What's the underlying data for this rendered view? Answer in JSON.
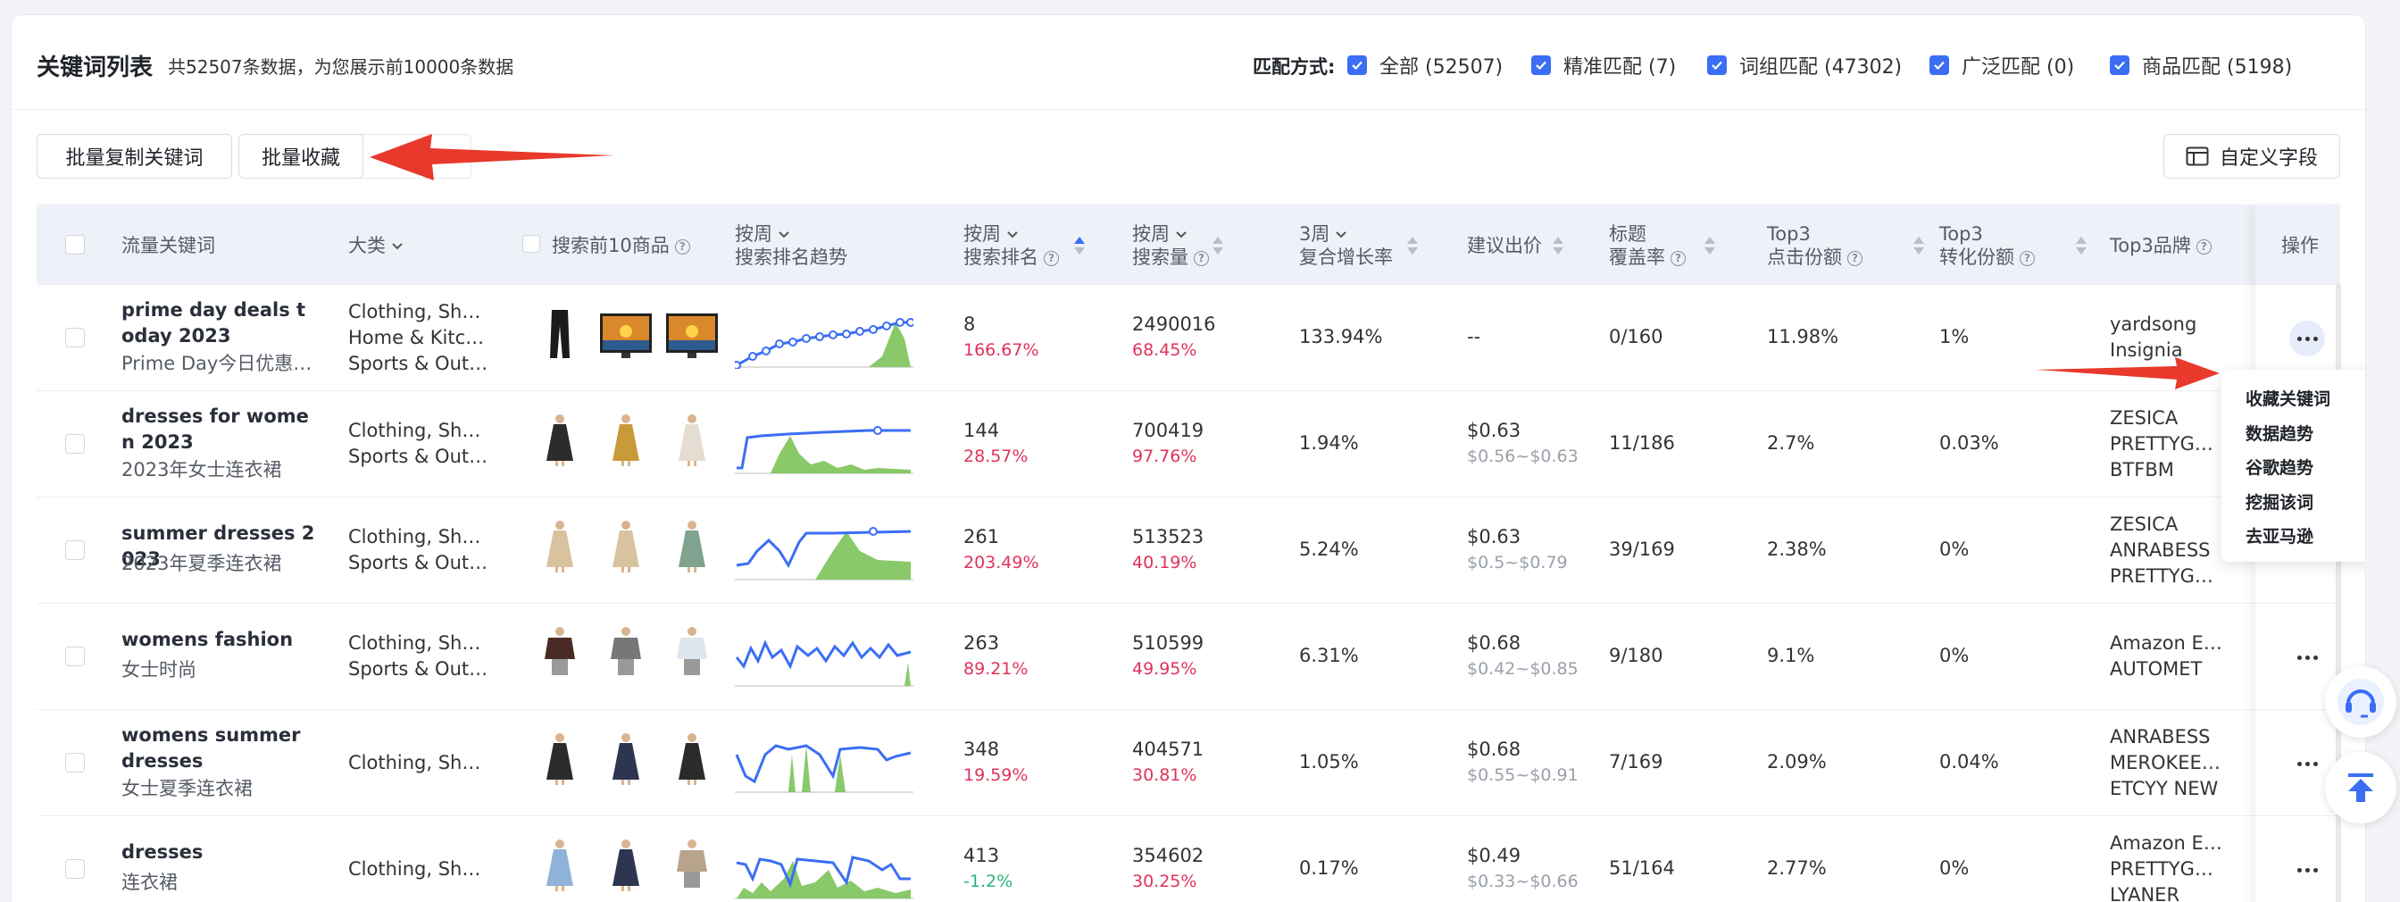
{
  "header": {
    "title": "关键词列表",
    "subtitle": "共52507条数据，为您展示前10000条数据",
    "match_label": "匹配方式:",
    "match_options": [
      {
        "label": "全部 (52507)",
        "checked": true
      },
      {
        "label": "精准匹配 (7)",
        "checked": true
      },
      {
        "label": "词组匹配 (47302)",
        "checked": true
      },
      {
        "label": "广泛匹配 (0)",
        "checked": true
      },
      {
        "label": "商品匹配 (5198)",
        "checked": true
      }
    ]
  },
  "toolbar": {
    "copy_label": "批量复制关键词",
    "collect_label": "批量收藏",
    "custom_label": "自定义字段"
  },
  "columns": {
    "keyword": "流量关键词",
    "category": "大类",
    "top10": "搜索前10商品",
    "trend_top": "按周",
    "trend_bottom": "搜索排名趋势",
    "rank_top": "按周",
    "rank_bottom": "搜索排名",
    "volume_top": "按周",
    "volume_bottom": "搜索量",
    "growth_top": "3周",
    "growth_bottom": "复合增长率",
    "bid": "建议出价",
    "title_top": "标题",
    "title_bottom": "覆盖率",
    "click_top": "Top3",
    "click_bottom": "点击份额",
    "conv_top": "Top3",
    "conv_bottom": "转化份额",
    "brand": "Top3品牌",
    "ops": "操作"
  },
  "rows": [
    {
      "kw": "prime day deals today 2023",
      "kw_cn": "Prime Day今日优惠2…",
      "cats": [
        "Clothing, Sho…",
        "Home & Kitc…",
        "Sports & Out…"
      ],
      "rank": "8",
      "rank_chg": "166.67%",
      "rank_dir": "up",
      "volume": "2490016",
      "vol_chg": "68.45%",
      "growth": "133.94%",
      "bid": "--",
      "bid_range": "",
      "title_cov": "0/160",
      "click": "11.98%",
      "conv": "1%",
      "brands": [
        "yardsong",
        "Insignia"
      ]
    },
    {
      "kw": "dresses for women 2023",
      "kw_cn": "2023年女士连衣裙",
      "cats": [
        "Clothing, Sho…",
        "Sports & Out…"
      ],
      "rank": "144",
      "rank_chg": "28.57%",
      "rank_dir": "up",
      "volume": "700419",
      "vol_chg": "97.76%",
      "growth": "1.94%",
      "bid": "$0.63",
      "bid_range": "$0.56~$0.63",
      "title_cov": "11/186",
      "click": "2.7%",
      "conv": "0.03%",
      "brands": [
        "ZESICA",
        "PRETTYG…",
        "BTFBM"
      ]
    },
    {
      "kw": "summer dresses 2023",
      "kw_cn": "2023年夏季连衣裙",
      "cats": [
        "Clothing, Sho…",
        "Sports & Out…"
      ],
      "rank": "261",
      "rank_chg": "203.49%",
      "rank_dir": "up",
      "volume": "513523",
      "vol_chg": "40.19%",
      "growth": "5.24%",
      "bid": "$0.63",
      "bid_range": "$0.5~$0.79",
      "title_cov": "39/169",
      "click": "2.38%",
      "conv": "0%",
      "brands": [
        "ZESICA",
        "ANRABESS",
        "PRETTYG…"
      ]
    },
    {
      "kw": "womens fashion",
      "kw_cn": "女士时尚",
      "cats": [
        "Clothing, Sho…",
        "Sports & Out…"
      ],
      "rank": "263",
      "rank_chg": "89.21%",
      "rank_dir": "up",
      "volume": "510599",
      "vol_chg": "49.95%",
      "growth": "6.31%",
      "bid": "$0.68",
      "bid_range": "$0.42~$0.85",
      "title_cov": "9/180",
      "click": "9.1%",
      "conv": "0%",
      "brands": [
        "Amazon E…",
        "AUTOMET"
      ]
    },
    {
      "kw": "womens summer dresses",
      "kw_cn": "女士夏季连衣裙",
      "cats": [
        "Clothing, Sho…"
      ],
      "rank": "348",
      "rank_chg": "19.59%",
      "rank_dir": "up",
      "volume": "404571",
      "vol_chg": "30.81%",
      "growth": "1.05%",
      "bid": "$0.68",
      "bid_range": "$0.55~$0.91",
      "title_cov": "7/169",
      "click": "2.09%",
      "conv": "0.04%",
      "brands": [
        "ANRABESS",
        "MEROKEE…",
        "ETCYY NEW"
      ]
    },
    {
      "kw": "dresses",
      "kw_cn": "连衣裙",
      "cats": [
        "Clothing, Sho…"
      ],
      "rank": "413",
      "rank_chg": "-1.2%",
      "rank_dir": "down",
      "volume": "354602",
      "vol_chg": "30.25%",
      "growth": "0.17%",
      "bid": "$0.49",
      "bid_range": "$0.33~$0.66",
      "title_cov": "51/164",
      "click": "2.77%",
      "conv": "0%",
      "brands": [
        "Amazon E…",
        "PRETTYG…",
        "LYANER"
      ]
    }
  ],
  "menu": [
    "收藏关键词",
    "数据趋势",
    "谷歌趋势",
    "挖掘该词",
    "去亚马逊"
  ],
  "colors": {
    "accent": "#3b6ef5",
    "up": "#e0325b",
    "down": "#2bb37a",
    "trend_line": "#3b6ef5",
    "trend_fill": "#7cc35a",
    "arrow": "#e8392c"
  }
}
